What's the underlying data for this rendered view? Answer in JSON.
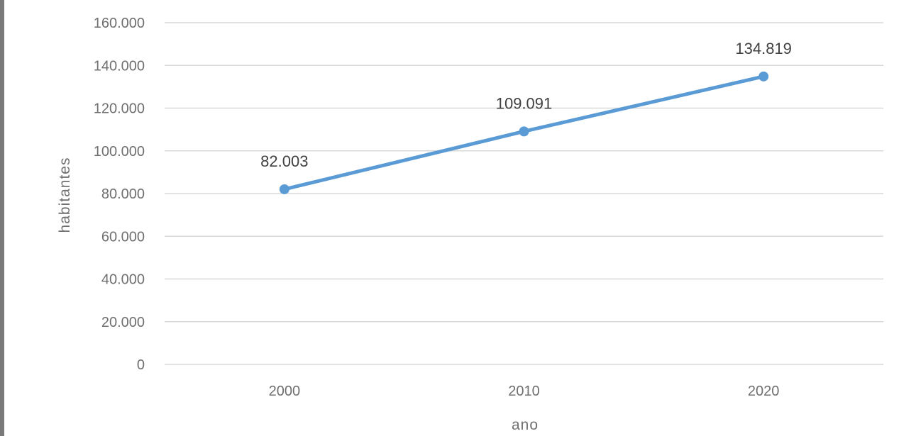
{
  "chart_data": {
    "type": "line",
    "title": "",
    "xlabel": "ano",
    "ylabel": "habitantes",
    "categories": [
      "2000",
      "2010",
      "2020"
    ],
    "series": [
      {
        "values": [
          82003,
          109091,
          134819
        ],
        "data_labels": [
          "82.003",
          "109.091",
          "134.819"
        ],
        "color": "#5b9bd5"
      }
    ],
    "ylim": [
      0,
      160000
    ],
    "y_ticks": [
      0,
      20000,
      40000,
      60000,
      80000,
      100000,
      120000,
      140000,
      160000
    ],
    "y_tick_labels": [
      "0",
      "20.000",
      "40.000",
      "60.000",
      "80.000",
      "100.000",
      "120.000",
      "140.000",
      "160.000"
    ],
    "grid": true,
    "legend": false
  },
  "colors": {
    "series": "#5b9bd5",
    "grid": "#d9d9d9",
    "tick_text": "#6f6f6f",
    "data_label_text": "#404040"
  }
}
